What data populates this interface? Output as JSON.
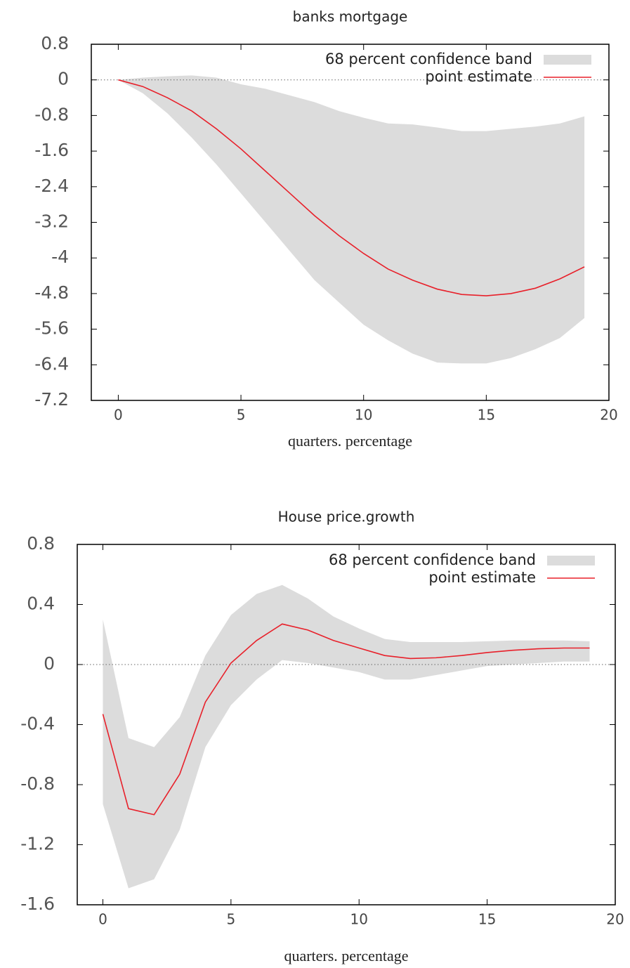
{
  "chart_data": [
    {
      "type": "line",
      "title": "banks mortgage",
      "x_label": "quarters. percentage",
      "x": [
        0,
        1,
        2,
        3,
        4,
        5,
        6,
        7,
        8,
        9,
        10,
        11,
        12,
        13,
        14,
        15,
        16,
        17,
        18,
        19
      ],
      "xlim": [
        -1.1,
        20
      ],
      "xticks": [
        0,
        5,
        10,
        15,
        20
      ],
      "ylim": [
        -7.2,
        0.8
      ],
      "yticks": [
        0.8,
        0,
        -0.8,
        -1.6,
        -2.4,
        -3.2,
        -4,
        -4.8,
        -5.6,
        -6.4,
        -7.2
      ],
      "grid": false,
      "legend": "top-right",
      "series": [
        {
          "name": "68 percent confidence band",
          "type": "band",
          "color": "#dcdcdc",
          "upper": [
            0,
            0.05,
            0.08,
            0.1,
            0.05,
            -0.1,
            -0.2,
            -0.35,
            -0.5,
            -0.7,
            -0.85,
            -0.98,
            -1.0,
            -1.07,
            -1.15,
            -1.15,
            -1.1,
            -1.05,
            -0.98,
            -0.82
          ],
          "lower": [
            0,
            -0.3,
            -0.75,
            -1.3,
            -1.9,
            -2.55,
            -3.2,
            -3.85,
            -4.5,
            -5.0,
            -5.5,
            -5.85,
            -6.15,
            -6.35,
            -6.37,
            -6.37,
            -6.25,
            -6.05,
            -5.8,
            -5.35
          ]
        },
        {
          "name": "point estimate",
          "type": "line",
          "color": "#e8202a",
          "values": [
            0,
            -0.15,
            -0.4,
            -0.7,
            -1.1,
            -1.55,
            -2.05,
            -2.55,
            -3.05,
            -3.5,
            -3.9,
            -4.25,
            -4.5,
            -4.7,
            -4.82,
            -4.85,
            -4.8,
            -4.68,
            -4.47,
            -4.2
          ]
        }
      ]
    },
    {
      "type": "line",
      "title": "House price.growth",
      "x_label": "quarters. percentage",
      "x": [
        0,
        1,
        2,
        3,
        4,
        5,
        6,
        7,
        8,
        9,
        10,
        11,
        12,
        13,
        14,
        15,
        16,
        17,
        18,
        19
      ],
      "xlim": [
        -1,
        20
      ],
      "xticks": [
        0,
        5,
        10,
        15,
        20
      ],
      "ylim": [
        -1.6,
        0.8
      ],
      "yticks": [
        0.8,
        0.4,
        0,
        -0.4,
        -0.8,
        -1.2,
        -1.6
      ],
      "grid": false,
      "legend": "top-right",
      "series": [
        {
          "name": "68 percent confidence band",
          "type": "band",
          "color": "#dcdcdc",
          "upper": [
            0.3,
            -0.49,
            -0.55,
            -0.35,
            0.06,
            0.33,
            0.47,
            0.53,
            0.44,
            0.32,
            0.24,
            0.17,
            0.15,
            0.15,
            0.15,
            0.155,
            0.16,
            0.16,
            0.16,
            0.155
          ],
          "lower": [
            -0.93,
            -1.49,
            -1.43,
            -1.1,
            -0.55,
            -0.27,
            -0.1,
            0.03,
            0.01,
            -0.02,
            -0.05,
            -0.1,
            -0.1,
            -0.07,
            -0.04,
            -0.01,
            0,
            0.01,
            0.02,
            0.02
          ]
        },
        {
          "name": "point estimate",
          "type": "line",
          "color": "#e8202a",
          "values": [
            -0.33,
            -0.96,
            -1.0,
            -0.73,
            -0.25,
            0.01,
            0.16,
            0.27,
            0.23,
            0.16,
            0.11,
            0.06,
            0.04,
            0.045,
            0.06,
            0.08,
            0.095,
            0.105,
            0.11,
            0.11
          ]
        }
      ]
    }
  ]
}
